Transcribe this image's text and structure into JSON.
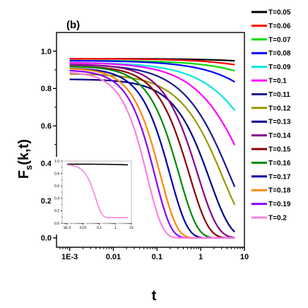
{
  "chart_data": [
    {
      "type": "line",
      "panel_label": "(b)",
      "xlabel": "t",
      "ylabel_main": "F",
      "ylabel_sub": "s",
      "ylabel_tail": "(k,t)",
      "x_scale": "log",
      "xlim": [
        0.0005,
        10
      ],
      "ylim": [
        -0.05,
        1.1
      ],
      "x_ticks": [
        {
          "value": 0.001,
          "label": "1E-3"
        },
        {
          "value": 0.01,
          "label": "0.01"
        },
        {
          "value": 0.1,
          "label": "0.1"
        },
        {
          "value": 1,
          "label": "1"
        },
        {
          "value": 10,
          "label": "10"
        }
      ],
      "y_ticks": [
        {
          "value": 0.0,
          "label": "0.0"
        },
        {
          "value": 0.2,
          "label": "0.2"
        },
        {
          "value": 0.4,
          "label": "0.4"
        },
        {
          "value": 0.6,
          "label": "0.6"
        },
        {
          "value": 0.8,
          "label": "0.8"
        },
        {
          "value": 1.0,
          "label": "1.0"
        }
      ],
      "legend_position": "right",
      "series": [
        {
          "name": "T=0.05",
          "color": "#000000",
          "y0": 0.96,
          "tau": 40000,
          "beta": 0.5
        },
        {
          "name": "T=0.06",
          "color": "#ff0000",
          "y0": 0.96,
          "tau": 5000,
          "beta": 0.5
        },
        {
          "name": "T=0.07",
          "color": "#00dd00",
          "y0": 0.95,
          "tau": 1000,
          "beta": 0.55
        },
        {
          "name": "T=0.08",
          "color": "#0000ff",
          "y0": 0.95,
          "tau": 250,
          "beta": 0.55
        },
        {
          "name": "T=0.09",
          "color": "#00e5e5",
          "y0": 0.94,
          "tau": 40,
          "beta": 0.6
        },
        {
          "name": "T=0.1",
          "color": "#ff00ff",
          "y0": 0.94,
          "tau": 12,
          "beta": 0.65
        },
        {
          "name": "T=0.11",
          "color": "#1a1a8c",
          "y0": 0.93,
          "tau": 4.5,
          "beta": 0.7
        },
        {
          "name": "T=0.12",
          "color": "#999900",
          "y0": 0.88,
          "tau": 3.2,
          "beta": 0.75
        },
        {
          "name": "T=0.13",
          "color": "#000088",
          "y0": 0.85,
          "tau": 1.6,
          "beta": 0.9
        },
        {
          "name": "T=0.14",
          "color": "#880088",
          "y0": 0.93,
          "tau": 0.85,
          "beta": 0.95
        },
        {
          "name": "T=0.15",
          "color": "#880000",
          "y0": 0.92,
          "tau": 0.55,
          "beta": 1.0
        },
        {
          "name": "T=0.16",
          "color": "#008800",
          "y0": 0.92,
          "tau": 0.32,
          "beta": 1.05
        },
        {
          "name": "T=0.17",
          "color": "#0000aa",
          "y0": 0.91,
          "tau": 0.2,
          "beta": 1.1
        },
        {
          "name": "T=0.18",
          "color": "#ff8800",
          "y0": 0.91,
          "tau": 0.12,
          "beta": 1.15
        },
        {
          "name": "T=0.19",
          "color": "#8800ff",
          "y0": 0.9,
          "tau": 0.09,
          "beta": 1.2
        },
        {
          "name": "T=0.2",
          "color": "#ff80e0",
          "y0": 0.89,
          "tau": 0.06,
          "beta": 1.25
        }
      ]
    },
    {
      "type": "line",
      "panel": "inset",
      "x_scale": "log",
      "xlim": [
        0.0005,
        10
      ],
      "ylim": [
        0,
        1.0
      ],
      "x_ticks": [
        {
          "value": 0.001,
          "label": "1E-3"
        },
        {
          "value": 0.01,
          "label": "0.01"
        },
        {
          "value": 0.1,
          "label": "0.1"
        },
        {
          "value": 1,
          "label": "1"
        },
        {
          "value": 10,
          "label": "10"
        }
      ],
      "y_ticks": [
        {
          "value": 0.0,
          "label": "0.0"
        },
        {
          "value": 0.2,
          "label": "0.2"
        },
        {
          "value": 0.4,
          "label": "0.4"
        },
        {
          "value": 0.6,
          "label": "0.6"
        },
        {
          "value": 0.8,
          "label": "0.8"
        },
        {
          "value": 1.0,
          "label": "1.0"
        }
      ],
      "series": [
        {
          "color": "#000000",
          "y0": 0.95,
          "tau": 40000,
          "beta": 0.5
        },
        {
          "color": "#ff80e0",
          "y0": 0.95,
          "tau": 0.06,
          "beta": 1.1,
          "floor": 0.09
        }
      ]
    }
  ]
}
